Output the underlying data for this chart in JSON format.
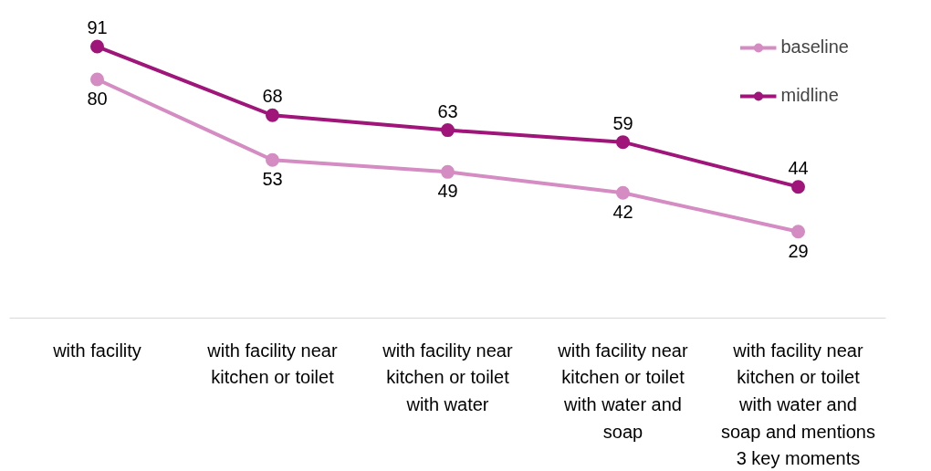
{
  "chart_data": {
    "type": "line",
    "categories": [
      "with facility",
      "with facility near kitchen or toilet",
      "with facility near kitchen or toilet with water",
      "with facility near kitchen or toilet with water and soap",
      "with facility near kitchen or toilet with water and soap and mentions 3 key moments"
    ],
    "series": [
      {
        "name": "baseline",
        "color": "#d48cc3",
        "values": [
          80,
          53,
          49,
          42,
          29
        ]
      },
      {
        "name": "midline",
        "color": "#a0157a",
        "values": [
          91,
          68,
          63,
          59,
          44
        ]
      }
    ],
    "data_labels": true,
    "legend": "top right",
    "marker": "circle",
    "line_style": "solid",
    "grid": false
  }
}
